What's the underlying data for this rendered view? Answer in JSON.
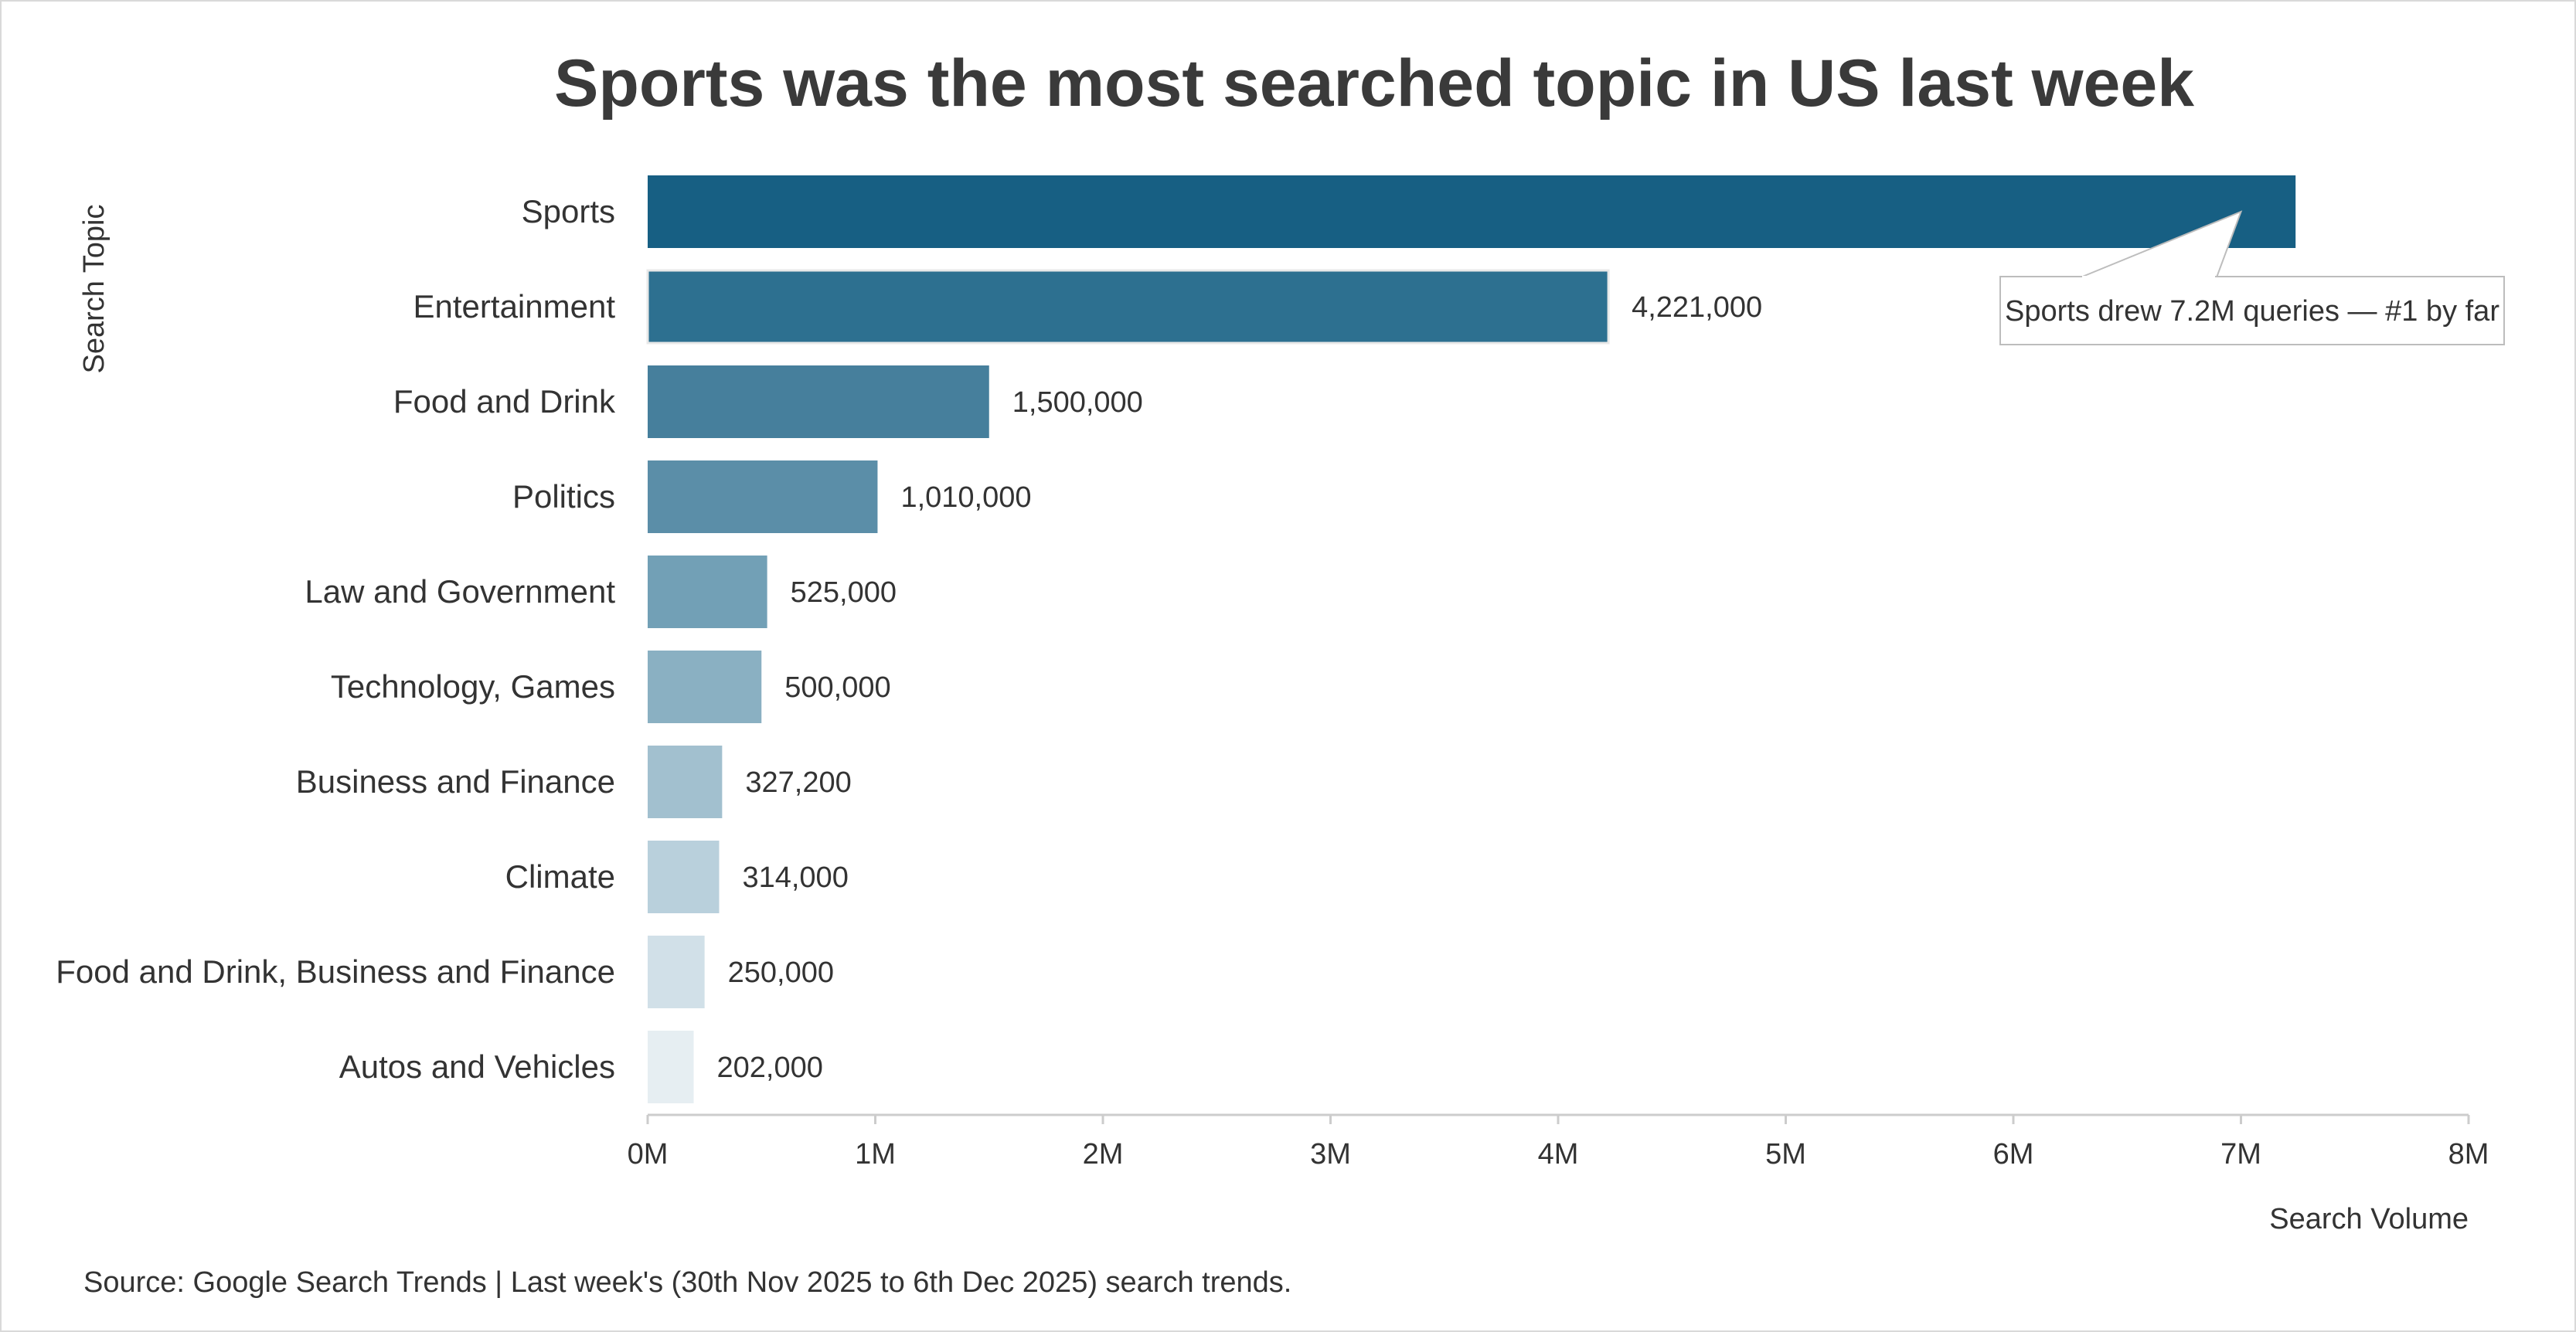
{
  "chart_data": {
    "type": "bar",
    "orientation": "horizontal",
    "title": "Sports was the most searched topic in US last week",
    "xlabel": "Search Volume",
    "ylabel": "Search Topic",
    "categories": [
      "Sports",
      "Entertainment",
      "Food and Drink",
      "Politics",
      "Law and Government",
      "Technology, Games",
      "Business and Finance",
      "Climate",
      "Food and Drink, Business and Finance",
      "Autos and Vehicles"
    ],
    "values": [
      7240000,
      4221000,
      1500000,
      1010000,
      525000,
      500000,
      327200,
      314000,
      250000,
      202000
    ],
    "value_labels": [
      "",
      "4,221,000",
      "1,500,000",
      "1,010,000",
      "525,000",
      "500,000",
      "327,200",
      "314,000",
      "250,000",
      "202,000"
    ],
    "colors": [
      "#175f83",
      "#2d7090",
      "#467f9c",
      "#5b8ea8",
      "#72a0b6",
      "#8ab0c2",
      "#a2c0cf",
      "#b9d0dc",
      "#d1e0e8",
      "#e6eef2"
    ],
    "xlim": [
      0,
      8000000
    ],
    "xticks": [
      0,
      1000000,
      2000000,
      3000000,
      4000000,
      5000000,
      6000000,
      7000000,
      8000000
    ],
    "xtick_labels": [
      "0M",
      "1M",
      "2M",
      "3M",
      "4M",
      "5M",
      "6M",
      "7M",
      "8M"
    ],
    "grid": false,
    "annotation": {
      "text": "Sports drew 7.2M queries — #1 by far",
      "target_category": "Sports",
      "target_value": 7000000
    },
    "source": "Source: Google Search Trends | Last week's (30th Nov 2025 to 6th Dec 2025) search trends."
  }
}
